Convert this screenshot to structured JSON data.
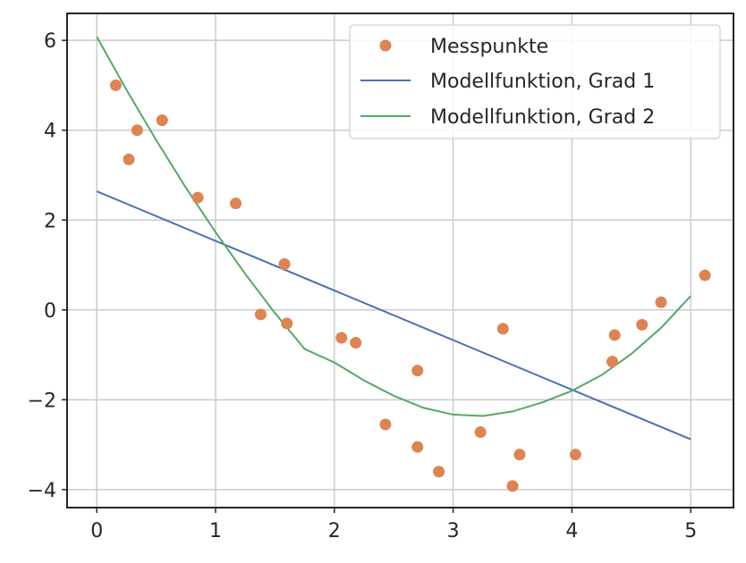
{
  "chart_data": {
    "type": "scatter",
    "title": "",
    "xlabel": "",
    "ylabel": "",
    "xlim": [
      -0.25,
      5.36
    ],
    "ylim": [
      -4.4,
      6.6
    ],
    "grid": true,
    "legend_position": "top-right",
    "x_ticks": [
      0,
      1,
      2,
      3,
      4,
      5
    ],
    "y_ticks": [
      -4,
      -2,
      0,
      2,
      4,
      6
    ],
    "x_tick_labels": [
      "0",
      "1",
      "2",
      "3",
      "4",
      "5"
    ],
    "y_tick_labels": [
      "−4",
      "−2",
      "0",
      "2",
      "4",
      "6"
    ],
    "series": [
      {
        "name": "Messpunkte",
        "kind": "scatter",
        "color": "#dd8452",
        "x": [
          0.16,
          0.27,
          0.34,
          0.55,
          0.85,
          1.17,
          1.38,
          1.58,
          1.6,
          2.06,
          2.18,
          2.43,
          2.7,
          2.7,
          2.88,
          3.23,
          3.42,
          3.5,
          3.56,
          4.03,
          4.34,
          4.36,
          4.59,
          4.75,
          5.12
        ],
        "y": [
          5.0,
          3.35,
          4.0,
          4.22,
          2.5,
          2.37,
          -0.1,
          1.02,
          -0.3,
          -0.62,
          -0.73,
          -2.55,
          -1.35,
          -3.05,
          -3.6,
          -2.72,
          -0.42,
          -3.92,
          -3.22,
          -3.22,
          -1.15,
          -0.56,
          -0.33,
          0.17,
          0.77
        ]
      },
      {
        "name": "Modellfunktion, Grad 1",
        "kind": "line",
        "color": "#4c72b0",
        "x": [
          0,
          5
        ],
        "y": [
          2.64,
          -2.88
        ]
      },
      {
        "name": "Modellfunktion, Grad 2",
        "kind": "line",
        "color": "#55a868",
        "x": [
          0,
          0.25,
          0.5,
          0.75,
          1.0,
          1.25,
          1.5,
          1.75,
          2.0,
          2.25,
          2.5,
          2.75,
          3.0,
          3.25,
          3.5,
          3.75,
          4.0,
          4.25,
          4.5,
          4.75,
          5.0
        ],
        "y": [
          6.08,
          4.9,
          3.78,
          2.72,
          1.73,
          0.8,
          -0.07,
          -0.87,
          -1.17,
          -1.57,
          -1.91,
          -2.18,
          -2.33,
          -2.36,
          -2.26,
          -2.06,
          -1.8,
          -1.45,
          -0.98,
          -0.4,
          0.31
        ]
      }
    ]
  }
}
